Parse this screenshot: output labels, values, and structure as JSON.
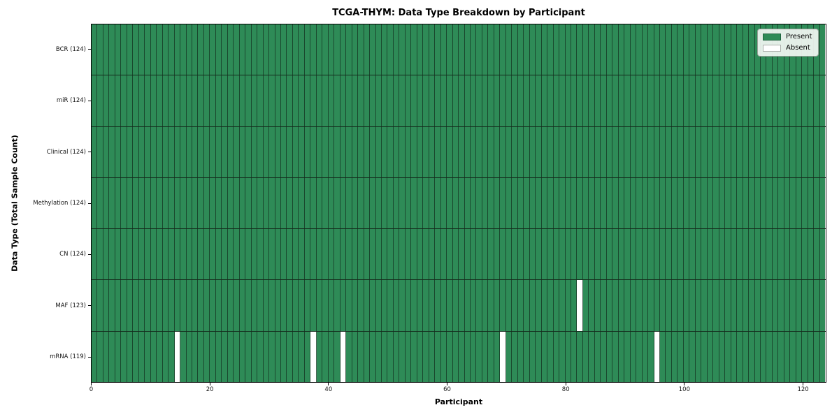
{
  "figure": {
    "background": "#ffffff"
  },
  "chart_data": {
    "type": "heatmap",
    "title": "TCGA-THYM: Data Type Breakdown by Participant",
    "xlabel": "Participant",
    "ylabel": "Data Type (Total Sample Count)",
    "xlim": [
      0,
      124
    ],
    "x_ticks": [
      0,
      20,
      40,
      60,
      80,
      100,
      120
    ],
    "n_participants": 124,
    "grid": true,
    "rows": [
      {
        "data_type": "BCR",
        "label": "BCR (124)",
        "total_samples": 124,
        "absent_participants": []
      },
      {
        "data_type": "miR",
        "label": "miR (124)",
        "total_samples": 124,
        "absent_participants": []
      },
      {
        "data_type": "Clinical",
        "label": "Clinical (124)",
        "total_samples": 124,
        "absent_participants": []
      },
      {
        "data_type": "Methylation",
        "label": "Methylation (124)",
        "total_samples": 124,
        "absent_participants": []
      },
      {
        "data_type": "CN",
        "label": "CN (124)",
        "total_samples": 124,
        "absent_participants": []
      },
      {
        "data_type": "MAF",
        "label": "MAF (123)",
        "total_samples": 123,
        "absent_participants": [
          82
        ]
      },
      {
        "data_type": "mRNA",
        "label": "mRNA (119)",
        "total_samples": 119,
        "absent_participants": [
          14,
          37,
          42,
          69,
          95
        ]
      }
    ],
    "legend": {
      "position": "upper right",
      "entries": [
        {
          "label": "Present",
          "color": "#2e8b57"
        },
        {
          "label": "Absent",
          "color": "#ffffff"
        }
      ]
    },
    "colors": {
      "present": "#2e8b57",
      "absent": "#ffffff",
      "grid_line": "#16301e",
      "axis": "#000000"
    }
  }
}
